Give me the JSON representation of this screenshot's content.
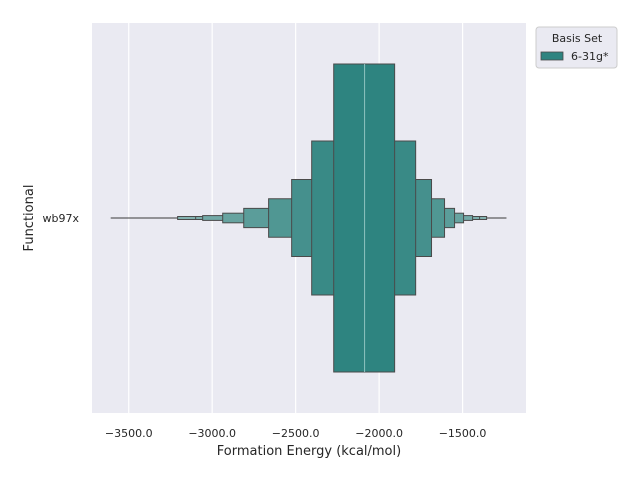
{
  "chart_data": {
    "type": "boxen",
    "orientation": "horizontal",
    "title": "",
    "xlabel": "Formation Energy (kcal/mol)",
    "ylabel": "Functional",
    "xlim": [
      -3720,
      -1120
    ],
    "xticks": [
      -3500,
      -3000,
      -2500,
      -2000,
      -1500
    ],
    "xtick_labels": [
      "−3500.0",
      "−3000.0",
      "−2500.0",
      "−2000.0",
      "−1500.0"
    ],
    "categories": [
      "wb97x"
    ],
    "grid": true,
    "legend": {
      "title": "Basis Set",
      "placement": "upper-right-outside",
      "entries": [
        {
          "name": "6-31g*",
          "color": "#2e8480"
        }
      ]
    },
    "series": [
      {
        "name": "6-31g*",
        "category": "wb97x",
        "median": -2087,
        "letter_values": [
          [
            -2272,
            -1907
          ],
          [
            -2404,
            -1781
          ],
          [
            -2524,
            -1686
          ],
          [
            -2662,
            -1608
          ],
          [
            -2811,
            -1548
          ],
          [
            -2937,
            -1494
          ],
          [
            -3057,
            -1440
          ],
          [
            -3099,
            -1398
          ],
          [
            -3207,
            -1356
          ]
        ],
        "outlier_range": [
          -3608,
          -1237
        ]
      }
    ],
    "colors": {
      "base": "#2e8480",
      "background": "#eaeaf2",
      "edge": "#4a4a4a"
    }
  }
}
